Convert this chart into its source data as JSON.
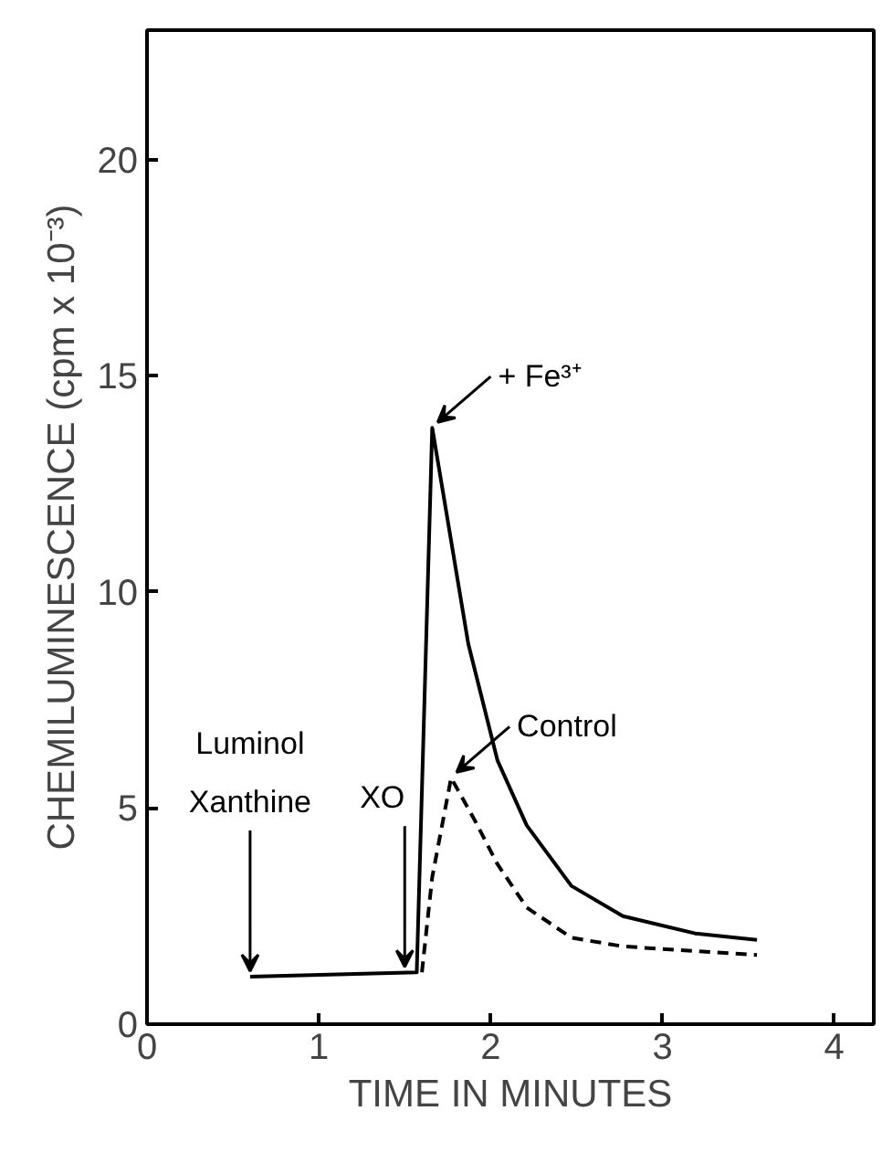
{
  "chart_data": {
    "type": "line",
    "xlabel": "TIME IN MINUTES",
    "ylabel": "CHEMILUMINESCENCE (cpm x 10⁻³)",
    "xlim": [
      0,
      4.23
    ],
    "ylim": [
      0,
      23
    ],
    "xticks": [
      0,
      1,
      2,
      3,
      4
    ],
    "yticks": [
      0,
      5,
      10,
      15,
      20
    ],
    "grid": false,
    "marker": "none",
    "series": [
      {
        "name": "+ Fe³⁺",
        "color": "#000000",
        "line_style": "solid",
        "x": [
          0.6,
          1.57,
          1.66,
          1.74,
          1.87,
          2.04,
          2.21,
          2.47,
          2.77,
          3.19,
          3.55
        ],
        "values": [
          1.1,
          1.2,
          13.8,
          11.9,
          8.8,
          6.1,
          4.6,
          3.2,
          2.5,
          2.1,
          1.95
        ]
      },
      {
        "name": "Control",
        "color": "#000000",
        "line_style": "dashed",
        "x": [
          1.6,
          1.66,
          1.77,
          1.91,
          2.04,
          2.21,
          2.47,
          2.77,
          3.55
        ],
        "values": [
          1.2,
          3.4,
          5.7,
          4.7,
          3.7,
          2.7,
          2.0,
          1.8,
          1.6
        ]
      }
    ],
    "annotations": [
      "Luminol",
      {
        "text": "Xanthine",
        "x": 0.6,
        "y": 1.1
      },
      {
        "text": "XO",
        "x": 1.5,
        "y": 1.2
      }
    ]
  }
}
